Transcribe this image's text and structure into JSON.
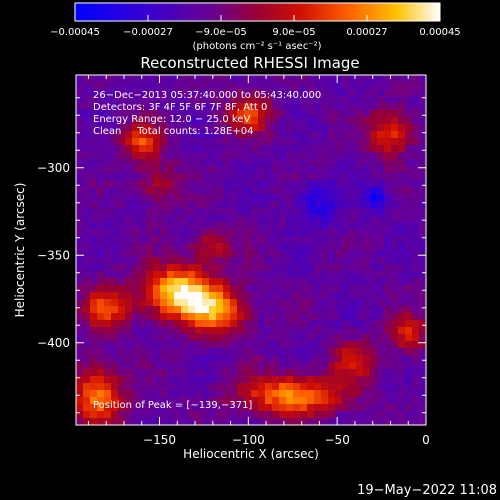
{
  "colors": {
    "background": "#000000",
    "text": "#ffffff"
  },
  "chart_data": {
    "type": "heatmap",
    "title": "Reconstructed RHESSI Image",
    "xlabel": "Heliocentric X (arcsec)",
    "ylabel": "Heliocentric Y (arcsec)",
    "xlim": [
      -197,
      0
    ],
    "ylim": [
      -447,
      -247
    ],
    "x_ticks": [
      -150,
      -100,
      -50,
      0
    ],
    "y_ticks": [
      -300,
      -350,
      -400
    ],
    "x_tick_labels": [
      "−150",
      "−100",
      "−50",
      "0"
    ],
    "y_tick_labels": [
      "−300",
      "−350",
      "−400"
    ],
    "colorbar": {
      "colormap": "blue-purple-red-orange-yellow-white",
      "range": [
        -0.00045,
        0.00045
      ],
      "ticks": [
        -0.00045,
        -0.00027,
        -9e-05,
        9e-05,
        0.00027,
        0.00045
      ],
      "tick_labels": [
        "−0.00045",
        "−0.00027",
        "−9.0e−05",
        "9.0e−05",
        "0.00027",
        "0.00045"
      ],
      "unit_label": "(photons cm⁻² s⁻¹ asec⁻²)"
    },
    "annotations": [
      "26−Dec−2013 05:37:40.000 to 05:43:40.000",
      "Detectors: 3F 4F 5F 6F 7F 8F, Att 0",
      "Energy Range: 12.0 − 25.0 keV",
      "Clean     Total counts: 1.28E+04"
    ],
    "peak_label": "Position of Peak = [−139,−371]",
    "peak_position": [
      -139,
      -371
    ],
    "sources": [
      {
        "x": -139,
        "y": -371,
        "amp": 1.0,
        "sx": 14,
        "sy": 10
      },
      {
        "x": -118,
        "y": -382,
        "amp": 0.7,
        "sx": 12,
        "sy": 9
      },
      {
        "x": -180,
        "y": -380,
        "amp": 0.55,
        "sx": 9,
        "sy": 9
      },
      {
        "x": -160,
        "y": -285,
        "amp": 0.55,
        "sx": 8,
        "sy": 7
      },
      {
        "x": -100,
        "y": -270,
        "amp": 0.5,
        "sx": 9,
        "sy": 8
      },
      {
        "x": -20,
        "y": -280,
        "amp": 0.55,
        "sx": 9,
        "sy": 9
      },
      {
        "x": -75,
        "y": -430,
        "amp": 0.75,
        "sx": 20,
        "sy": 8
      },
      {
        "x": -185,
        "y": -430,
        "amp": 0.7,
        "sx": 10,
        "sy": 12
      },
      {
        "x": -120,
        "y": -345,
        "amp": 0.4,
        "sx": 8,
        "sy": 6
      },
      {
        "x": -150,
        "y": -310,
        "amp": 0.35,
        "sx": 8,
        "sy": 8
      },
      {
        "x": -40,
        "y": -410,
        "amp": 0.4,
        "sx": 10,
        "sy": 8
      },
      {
        "x": -10,
        "y": -395,
        "amp": 0.45,
        "sx": 7,
        "sy": 8
      },
      {
        "x": -60,
        "y": -320,
        "amp": -0.35,
        "sx": 8,
        "sy": 8
      },
      {
        "x": -28,
        "y": -318,
        "amp": -0.45,
        "sx": 5,
        "sy": 5
      }
    ]
  },
  "timestamp": "19−May−2022 11:08"
}
